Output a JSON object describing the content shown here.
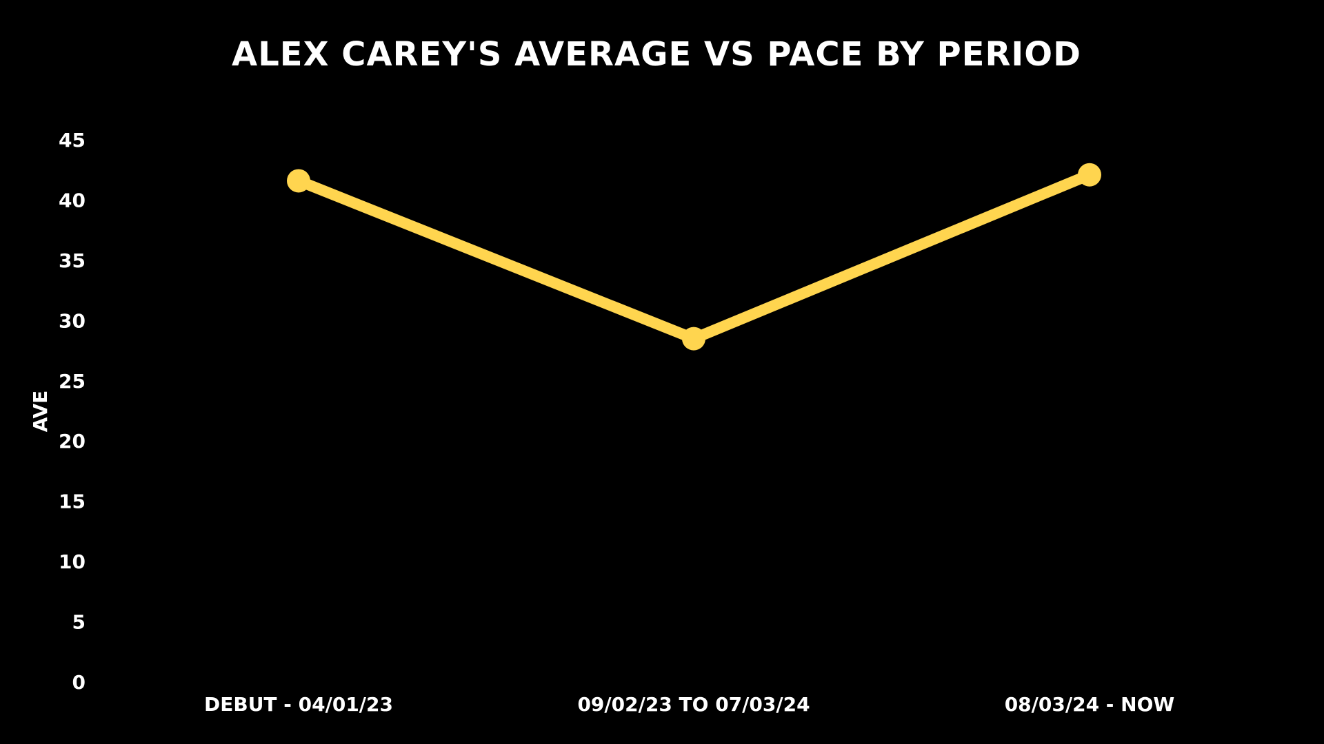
{
  "chart_data": {
    "type": "line",
    "title": "ALEX CAREY'S AVERAGE VS PACE BY PERIOD",
    "xlabel": "",
    "ylabel": "AVE",
    "categories": [
      "DEBUT - 04/01/23",
      "09/02/23 TO 07/03/24",
      "08/03/24 - NOW"
    ],
    "series": [
      {
        "values": [
          41.6,
          28.5,
          42.1
        ],
        "color": "#FFD54F"
      }
    ],
    "ylim": [
      0,
      45
    ],
    "yticks": [
      "0",
      "5",
      "10",
      "15",
      "20",
      "25",
      "30",
      "35",
      "40",
      "45"
    ],
    "grid": false,
    "legend": "none",
    "background": "#000000",
    "text_color": "#FFFFFF"
  }
}
